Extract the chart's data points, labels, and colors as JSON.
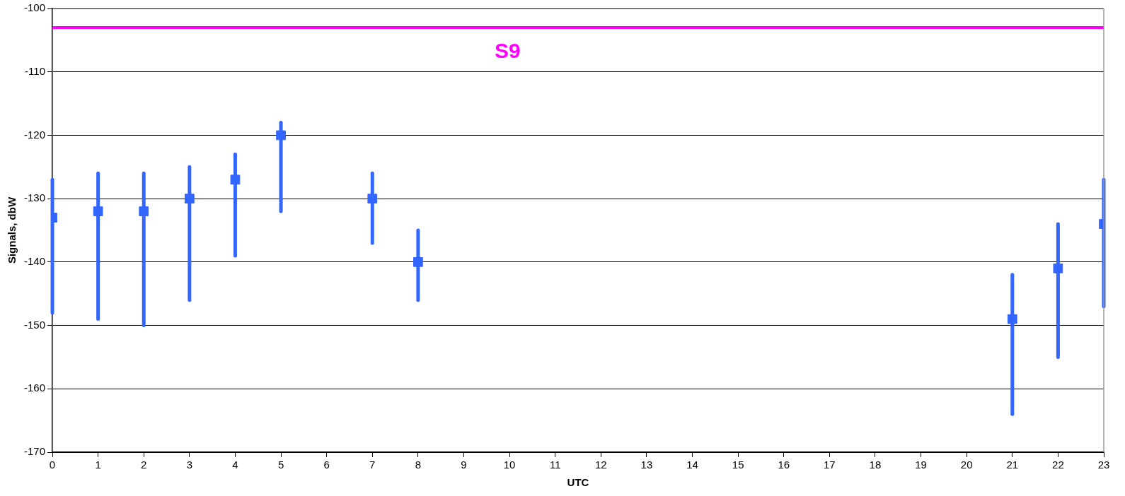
{
  "chart_data": {
    "type": "scatter",
    "xlabel": "UTC",
    "ylabel": "Signals, dbW",
    "x": [
      0,
      1,
      2,
      3,
      4,
      5,
      7,
      8,
      21,
      22,
      23
    ],
    "series": [
      {
        "color": "#3366ff",
        "values": [
          -133,
          -132,
          -132,
          -130,
          -127,
          -120,
          -130,
          -140,
          -149,
          -141,
          -134
        ],
        "errors": [
          [
            -148,
            -127
          ],
          [
            -149,
            -126
          ],
          [
            -150,
            -126
          ],
          [
            -146,
            -125
          ],
          [
            -139,
            -123
          ],
          [
            -132,
            -118
          ],
          [
            -137,
            -126
          ],
          [
            -146,
            -135
          ],
          [
            -164,
            -142
          ],
          [
            -155,
            -134
          ],
          [
            -147,
            -127
          ]
        ]
      }
    ],
    "xlim": [
      0,
      23
    ],
    "xticks": [
      0,
      1,
      2,
      3,
      4,
      5,
      6,
      7,
      8,
      9,
      10,
      11,
      12,
      13,
      14,
      15,
      16,
      17,
      18,
      19,
      20,
      21,
      22,
      23
    ],
    "ylim": [
      -170,
      -100
    ],
    "yticks": [
      -170,
      -160,
      -150,
      -140,
      -130,
      -120,
      -110,
      -100
    ],
    "ref_lines": [
      {
        "axis": "y",
        "value": -103,
        "label": "S9",
        "color": "#ff00ff"
      }
    ],
    "grid": "y",
    "marker": "square",
    "legend": false
  }
}
